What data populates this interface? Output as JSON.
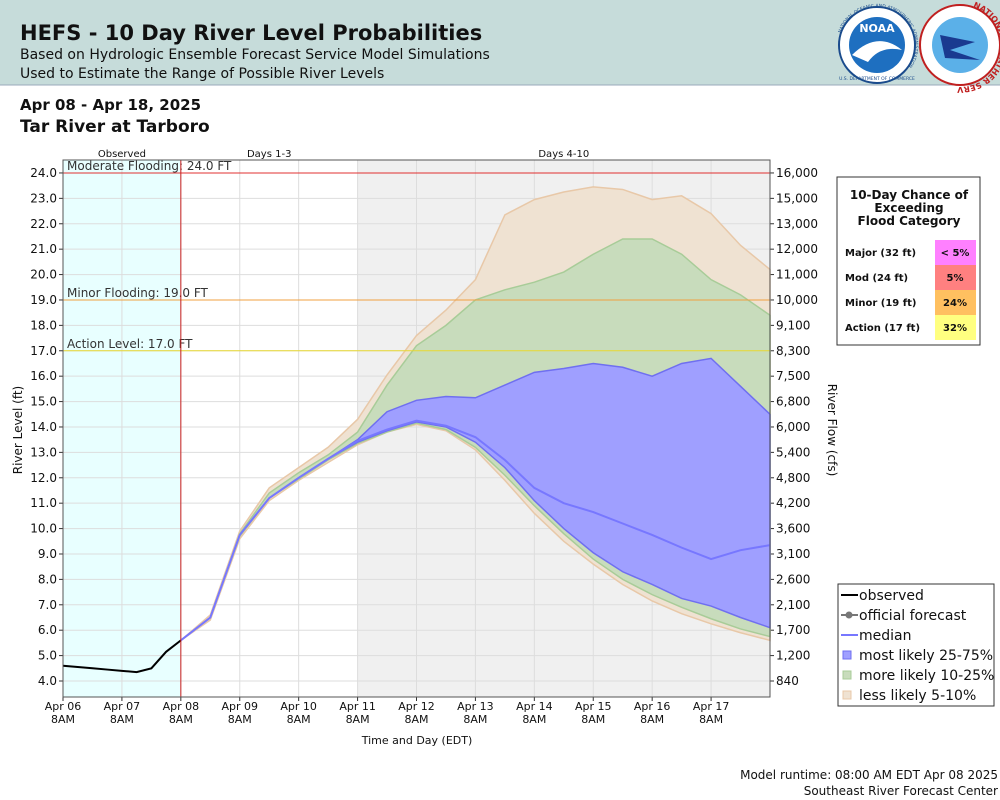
{
  "header": {
    "title": "HEFS - 10 Day River Level Probabilities",
    "subtitle_lines": [
      "Based on Hydrologic Ensemble Forecast Service Model Simulations",
      "Used to Estimate the Range of Possible River Levels"
    ],
    "logos": {
      "noaa": "NOAA",
      "noaa_ring": "NATIONAL OCEANIC AND ATMOSPHERIC ADMINISTRATION",
      "noaa_ring_bottom": "U.S. DEPARTMENT OF COMMERCE",
      "nws_ring": "NATIONAL WEATHER SERVICE"
    }
  },
  "date_range": "Apr 08 - Apr 18, 2025",
  "location": "Tar River at Tarboro",
  "chart_data": {
    "type": "band",
    "y_label": "River Level (ft)",
    "y2_label": "River Flow (cfs)",
    "x_label": "Time and Day (EDT)",
    "xlim": [
      "2025-04-06T08:00",
      "2025-04-18T08:00"
    ],
    "xticks": [
      {
        "value": "2025-04-06T08:00",
        "label": "Apr 06\n8AM"
      },
      {
        "value": "2025-04-07T08:00",
        "label": "Apr 07\n8AM"
      },
      {
        "value": "2025-04-08T08:00",
        "label": "Apr 08\n8AM"
      },
      {
        "value": "2025-04-09T08:00",
        "label": "Apr 09\n8AM"
      },
      {
        "value": "2025-04-10T08:00",
        "label": "Apr 10\n8AM"
      },
      {
        "value": "2025-04-11T08:00",
        "label": "Apr 11\n8AM"
      },
      {
        "value": "2025-04-12T08:00",
        "label": "Apr 12\n8AM"
      },
      {
        "value": "2025-04-13T08:00",
        "label": "Apr 13\n8AM"
      },
      {
        "value": "2025-04-14T08:00",
        "label": "Apr 14\n8AM"
      },
      {
        "value": "2025-04-15T08:00",
        "label": "Apr 15\n8AM"
      },
      {
        "value": "2025-04-16T08:00",
        "label": "Apr 16\n8AM"
      },
      {
        "value": "2025-04-17T08:00",
        "label": "Apr 17\n8AM"
      }
    ],
    "ylim": [
      3.37,
      24.51
    ],
    "yticks": [
      {
        "value": 4,
        "label": "4.0"
      },
      {
        "value": 5,
        "label": "5.0"
      },
      {
        "value": 6,
        "label": "6.0"
      },
      {
        "value": 7,
        "label": "7.0"
      },
      {
        "value": 8,
        "label": "8.0"
      },
      {
        "value": 9,
        "label": "9.0"
      },
      {
        "value": 10,
        "label": "10.0"
      },
      {
        "value": 11,
        "label": "11.0"
      },
      {
        "value": 12,
        "label": "12.0"
      },
      {
        "value": 13,
        "label": "13.0"
      },
      {
        "value": 14,
        "label": "14.0"
      },
      {
        "value": 15,
        "label": "15.0"
      },
      {
        "value": 16,
        "label": "16.0"
      },
      {
        "value": 17,
        "label": "17.0"
      },
      {
        "value": 18,
        "label": "18.0"
      },
      {
        "value": 19,
        "label": "19.0"
      },
      {
        "value": 20,
        "label": "20.0"
      },
      {
        "value": 21,
        "label": "21.0"
      },
      {
        "value": 22,
        "label": "22.0"
      },
      {
        "value": 23,
        "label": "23.0"
      },
      {
        "value": 24,
        "label": "24.0"
      }
    ],
    "y2ticks": [
      {
        "value": 840,
        "label": "840"
      },
      {
        "value": 1200,
        "label": "1,200"
      },
      {
        "value": 1700,
        "label": "1,700"
      },
      {
        "value": 2100,
        "label": "2,100"
      },
      {
        "value": 2600,
        "label": "2,600"
      },
      {
        "value": 3100,
        "label": "3,100"
      },
      {
        "value": 3600,
        "label": "3,600"
      },
      {
        "value": 4200,
        "label": "4,200"
      },
      {
        "value": 4800,
        "label": "4,800"
      },
      {
        "value": 5400,
        "label": "5,400"
      },
      {
        "value": 6000,
        "label": "6,000"
      },
      {
        "value": 6800,
        "label": "6,800"
      },
      {
        "value": 7500,
        "label": "7,500"
      },
      {
        "value": 8300,
        "label": "8,300"
      },
      {
        "value": 9100,
        "label": "9,100"
      },
      {
        "value": 10000,
        "label": "10,000"
      },
      {
        "value": 11000,
        "label": "11,000"
      },
      {
        "value": 12000,
        "label": "12,000"
      },
      {
        "value": 13000,
        "label": "13,000"
      },
      {
        "value": 15000,
        "label": "15,000"
      },
      {
        "value": 16000,
        "label": "16,000"
      }
    ],
    "grid": true,
    "periods": [
      {
        "label": "Observed",
        "start": "2025-04-06T08:00",
        "end": "2025-04-08T08:00",
        "color": "#e8ffff"
      },
      {
        "label": "Days 1-3",
        "start": "2025-04-08T08:00",
        "end": "2025-04-11T08:00",
        "color": "#ffffff"
      },
      {
        "label": "Days 4-10",
        "start": "2025-04-11T08:00",
        "end": "2025-04-18T08:00",
        "color": "#f0f0f0"
      }
    ],
    "flood_levels": [
      {
        "label": "Moderate Flooding: 24.0 FT",
        "value": 24,
        "color": "#e03030"
      },
      {
        "label": "Minor Flooding: 19.0 FT",
        "value": 19,
        "color": "#f0a040"
      },
      {
        "label": "Action Level: 17.0 FT",
        "value": 17,
        "color": "#e8d830"
      }
    ],
    "legend": "lower-right",
    "series": [
      {
        "name": "observed",
        "style": "line",
        "color": "#000000",
        "x": [
          "2025-04-06T08:00",
          "2025-04-06T14:00",
          "2025-04-06T20:00",
          "2025-04-07T02:00",
          "2025-04-07T08:00",
          "2025-04-07T14:00",
          "2025-04-07T20:00",
          "2025-04-08T02:00",
          "2025-04-08T08:00"
        ],
        "values": [
          4.6,
          4.55,
          4.5,
          4.45,
          4.4,
          4.35,
          4.5,
          5.15,
          5.6
        ]
      },
      {
        "name": "official forecast",
        "style": "line-dot",
        "color": "#777777",
        "x": [],
        "values": []
      },
      {
        "name": "median",
        "style": "line",
        "color": "#7777ff",
        "x": [
          "2025-04-08T08:00",
          "2025-04-08T20:00",
          "2025-04-09T08:00",
          "2025-04-09T20:00",
          "2025-04-10T08:00",
          "2025-04-10T20:00",
          "2025-04-11T08:00",
          "2025-04-11T20:00",
          "2025-04-12T08:00",
          "2025-04-12T20:00",
          "2025-04-13T08:00",
          "2025-04-13T20:00",
          "2025-04-14T08:00",
          "2025-04-14T20:00",
          "2025-04-15T08:00",
          "2025-04-15T20:00",
          "2025-04-16T08:00",
          "2025-04-16T20:00",
          "2025-04-17T08:00",
          "2025-04-17T20:00",
          "2025-04-18T08:00"
        ],
        "values": [
          5.6,
          6.5,
          9.75,
          11.2,
          12.0,
          12.75,
          13.45,
          13.9,
          14.25,
          14.05,
          13.6,
          12.7,
          11.6,
          11.0,
          10.65,
          10.2,
          9.75,
          9.25,
          8.8,
          9.15,
          9.35
        ]
      },
      {
        "name": "most likely 25-75%",
        "style": "band",
        "color": "#9f9fff",
        "edge": "#6f6ff0",
        "x": [
          "2025-04-08T08:00",
          "2025-04-08T20:00",
          "2025-04-09T08:00",
          "2025-04-09T20:00",
          "2025-04-10T08:00",
          "2025-04-10T20:00",
          "2025-04-11T08:00",
          "2025-04-11T20:00",
          "2025-04-12T08:00",
          "2025-04-12T20:00",
          "2025-04-13T08:00",
          "2025-04-13T20:00",
          "2025-04-14T08:00",
          "2025-04-14T20:00",
          "2025-04-15T08:00",
          "2025-04-15T20:00",
          "2025-04-16T08:00",
          "2025-04-16T20:00",
          "2025-04-17T08:00",
          "2025-04-17T20:00",
          "2025-04-18T08:00"
        ],
        "upper": [
          5.6,
          6.5,
          9.75,
          11.2,
          12.0,
          12.75,
          13.5,
          14.6,
          15.05,
          15.2,
          15.15,
          15.65,
          16.15,
          16.3,
          16.5,
          16.35,
          16.0,
          16.5,
          16.7,
          15.6,
          14.5
        ],
        "lower": [
          5.6,
          6.5,
          9.75,
          11.2,
          12.0,
          12.75,
          13.4,
          13.85,
          14.2,
          14.0,
          13.4,
          12.4,
          11.1,
          10.0,
          9.05,
          8.3,
          7.8,
          7.25,
          6.95,
          6.5,
          6.1
        ]
      },
      {
        "name": "more likely 10-25%",
        "style": "band",
        "color": "#c8dcbc",
        "edge": "#a8cc98",
        "x": [
          "2025-04-08T08:00",
          "2025-04-08T20:00",
          "2025-04-09T08:00",
          "2025-04-09T20:00",
          "2025-04-10T08:00",
          "2025-04-10T20:00",
          "2025-04-11T08:00",
          "2025-04-11T20:00",
          "2025-04-12T08:00",
          "2025-04-12T20:00",
          "2025-04-13T08:00",
          "2025-04-13T20:00",
          "2025-04-14T08:00",
          "2025-04-14T20:00",
          "2025-04-15T08:00",
          "2025-04-15T20:00",
          "2025-04-16T08:00",
          "2025-04-16T20:00",
          "2025-04-17T08:00",
          "2025-04-17T20:00",
          "2025-04-18T08:00"
        ],
        "upper": [
          5.6,
          6.5,
          9.8,
          11.4,
          12.2,
          12.9,
          13.8,
          15.65,
          17.2,
          18.0,
          19.0,
          19.4,
          19.7,
          20.1,
          20.8,
          21.4,
          21.4,
          20.8,
          19.8,
          19.2,
          18.4
        ],
        "lower": [
          5.6,
          6.5,
          9.7,
          11.2,
          11.95,
          12.7,
          13.35,
          13.8,
          14.15,
          13.9,
          13.2,
          12.1,
          10.9,
          9.8,
          8.8,
          8.0,
          7.4,
          6.9,
          6.45,
          6.05,
          5.75
        ]
      },
      {
        "name": "less likely 5-10%",
        "style": "band",
        "color": "#efe2d2",
        "edge": "#e8c8a8",
        "x": [
          "2025-04-08T08:00",
          "2025-04-08T20:00",
          "2025-04-09T08:00",
          "2025-04-09T20:00",
          "2025-04-10T08:00",
          "2025-04-10T20:00",
          "2025-04-11T08:00",
          "2025-04-11T20:00",
          "2025-04-12T08:00",
          "2025-04-12T20:00",
          "2025-04-13T08:00",
          "2025-04-13T20:00",
          "2025-04-14T08:00",
          "2025-04-14T20:00",
          "2025-04-15T08:00",
          "2025-04-15T20:00",
          "2025-04-16T08:00",
          "2025-04-16T20:00",
          "2025-04-17T08:00",
          "2025-04-17T20:00",
          "2025-04-18T08:00"
        ],
        "upper": [
          5.6,
          6.6,
          9.9,
          11.6,
          12.4,
          13.2,
          14.3,
          16.05,
          17.6,
          18.6,
          19.8,
          22.35,
          22.95,
          23.25,
          23.45,
          23.35,
          22.95,
          23.1,
          22.4,
          21.15,
          20.2
        ],
        "lower": [
          5.6,
          6.4,
          9.6,
          11.1,
          11.9,
          12.6,
          13.3,
          13.8,
          14.1,
          13.85,
          13.1,
          11.9,
          10.6,
          9.5,
          8.6,
          7.8,
          7.15,
          6.65,
          6.25,
          5.9,
          5.6
        ]
      }
    ]
  },
  "probability_table": {
    "title": [
      "10-Day Chance of",
      "Exceeding",
      "Flood Category"
    ],
    "rows": [
      {
        "category": "Major (32 ft)",
        "chance": "< 5%",
        "color": "#ff80ff"
      },
      {
        "category": "Mod (24 ft)",
        "chance": "5%",
        "color": "#ff8080"
      },
      {
        "category": "Minor (19 ft)",
        "chance": "24%",
        "color": "#ffc060"
      },
      {
        "category": "Action (17 ft)",
        "chance": "32%",
        "color": "#ffff80"
      }
    ]
  },
  "footer": {
    "runtime": "Model runtime: 08:00 AM EDT Apr 08 2025",
    "center": "Southeast River Forecast Center"
  }
}
